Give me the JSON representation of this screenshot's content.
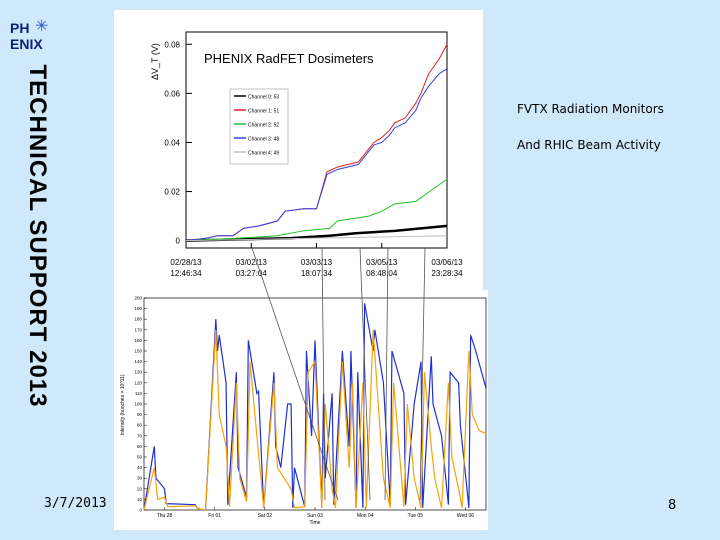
{
  "logo": {
    "text_left": "PH",
    "text_right": "ENIX",
    "icon": "star-icon"
  },
  "vertical_title": "TECHNICAL SUPPORT 2013",
  "caption_line1": "FVTX Radiation Monitors",
  "caption_line2": "And RHIC Beam Activity",
  "footer_date": "3/7/2013",
  "page_number": "8",
  "colors": {
    "background": "#cfe9fb",
    "blue": "#1f2fd0",
    "orange": "#f5a20d"
  },
  "chart_data": [
    {
      "type": "line",
      "title": "PHENIX RadFET Dosimeters",
      "ylabel": "ΔV_T (V)",
      "ylim": [
        -0.003,
        0.085
      ],
      "yticks": [
        "0",
        "0.02",
        "0.04",
        "0.06",
        "0.08"
      ],
      "xtick_labels": [
        [
          "02/28/13",
          "12:46:34"
        ],
        [
          "03/02/13",
          "03:27:04"
        ],
        [
          "03/03/13",
          "18:07:34"
        ],
        [
          "03/05/13",
          "08:48:04"
        ],
        [
          "03/06/13",
          "23:28:34"
        ]
      ],
      "x_range": [
        0,
        100
      ],
      "series": [
        {
          "name": "Channel 0: 53",
          "color": "#000000",
          "x": [
            0,
            20,
            40,
            55,
            65,
            80,
            90,
            100
          ],
          "y": [
            0,
            0.0005,
            0.001,
            0.002,
            0.003,
            0.004,
            0.005,
            0.006
          ]
        },
        {
          "name": "Channel 1: 51",
          "color": "#e02020",
          "x": [
            0,
            8,
            12,
            18,
            22,
            28,
            35,
            38,
            45,
            50,
            54,
            58,
            62,
            66,
            72,
            75,
            78,
            80,
            84,
            88,
            90,
            93,
            97,
            100
          ],
          "y": [
            0,
            0.001,
            0.002,
            0.002,
            0.005,
            0.006,
            0.008,
            0.012,
            0.013,
            0.013,
            0.028,
            0.03,
            0.031,
            0.032,
            0.04,
            0.042,
            0.045,
            0.048,
            0.05,
            0.056,
            0.06,
            0.068,
            0.074,
            0.08
          ]
        },
        {
          "name": "Channel 2: 52",
          "color": "#20c020",
          "x": [
            0,
            20,
            35,
            45,
            55,
            58,
            70,
            75,
            80,
            88,
            92,
            100
          ],
          "y": [
            0,
            0.001,
            0.002,
            0.004,
            0.005,
            0.008,
            0.01,
            0.012,
            0.015,
            0.016,
            0.019,
            0.025
          ]
        },
        {
          "name": "Channel 3: 48",
          "color": "#3040e0",
          "x": [
            0,
            8,
            12,
            18,
            22,
            28,
            35,
            38,
            45,
            50,
            54,
            58,
            62,
            66,
            72,
            75,
            78,
            80,
            84,
            88,
            90,
            93,
            97,
            100
          ],
          "y": [
            0,
            0.001,
            0.002,
            0.002,
            0.005,
            0.006,
            0.008,
            0.012,
            0.013,
            0.013,
            0.027,
            0.029,
            0.03,
            0.031,
            0.039,
            0.04,
            0.043,
            0.046,
            0.048,
            0.053,
            0.058,
            0.063,
            0.068,
            0.07
          ]
        },
        {
          "name": "Channel 4: 49",
          "color": "#c0c0c0",
          "x": [
            0,
            50,
            100
          ],
          "y": [
            0,
            0.001,
            0.002
          ]
        }
      ]
    },
    {
      "type": "line",
      "xlabel": "Time",
      "ylabel": "Intensity (bunches × 10^11)",
      "ylim": [
        0,
        200
      ],
      "yticks": [
        "0",
        "10",
        "20",
        "30",
        "40",
        "50",
        "60",
        "70",
        "80",
        "90",
        "100",
        "110",
        "120",
        "130",
        "140",
        "150",
        "160",
        "170",
        "180",
        "190",
        "200"
      ],
      "xtick_labels": [
        "Thu 28",
        "Fri 01",
        "Sat 02",
        "Sun 03",
        "Mon 04",
        "Tue 05",
        "Wed 06"
      ],
      "x_range": [
        0,
        100
      ],
      "series": [
        {
          "name": "Blue",
          "color": "#1f2fd0",
          "x": [
            0,
            3,
            3.5,
            6,
            6.5,
            15,
            15.5,
            17,
            18,
            21,
            21.5,
            22,
            24,
            24.5,
            27,
            27.5,
            30,
            30.5,
            33,
            33.5,
            35,
            38,
            38.5,
            40,
            42,
            43,
            43.5,
            44,
            47,
            47.5,
            49,
            50,
            52,
            52.5,
            53,
            55,
            55.5,
            58,
            60,
            60.5,
            62,
            62.5,
            64,
            64.5,
            67,
            67.5,
            70,
            72,
            72.5,
            76,
            76.5,
            79,
            81,
            81.5,
            84,
            84.5,
            87,
            89,
            89.5,
            92,
            92.5,
            95,
            95.5,
            97,
            100
          ],
          "y": [
            0,
            60,
            30,
            20,
            6,
            5,
            2,
            0,
            0,
            180,
            150,
            165,
            120,
            5,
            130,
            40,
            12,
            160,
            110,
            112,
            2,
            130,
            60,
            40,
            100,
            100,
            2,
            40,
            3,
            150,
            70,
            160,
            2,
            110,
            30,
            110,
            5,
            150,
            60,
            150,
            2,
            130,
            2,
            195,
            150,
            170,
            120,
            5,
            150,
            110,
            5,
            100,
            140,
            2,
            145,
            100,
            70,
            5,
            130,
            120,
            80,
            2,
            165,
            150,
            115
          ]
        },
        {
          "name": "Yellow",
          "color": "#f5a20d",
          "x": [
            0,
            3,
            4,
            6,
            7,
            15,
            16,
            18,
            21,
            22,
            24,
            25,
            27,
            28,
            30,
            31,
            33,
            35,
            38,
            39,
            41,
            43,
            44,
            47,
            48,
            50,
            52,
            53,
            55,
            56,
            58,
            60,
            61,
            62,
            64,
            65,
            67,
            70,
            72,
            73,
            76,
            77,
            79,
            81,
            82,
            84,
            85,
            87,
            89,
            90,
            92,
            93,
            95,
            96,
            98,
            100
          ],
          "y": [
            0,
            40,
            10,
            12,
            3,
            4,
            1,
            0,
            170,
            90,
            60,
            3,
            120,
            30,
            8,
            140,
            70,
            2,
            120,
            40,
            30,
            20,
            2,
            3,
            130,
            140,
            2,
            100,
            20,
            2,
            140,
            40,
            120,
            2,
            120,
            2,
            170,
            30,
            2,
            120,
            3,
            100,
            30,
            2,
            130,
            60,
            30,
            2,
            120,
            50,
            20,
            2,
            150,
            90,
            75,
            72
          ]
        }
      ]
    }
  ]
}
